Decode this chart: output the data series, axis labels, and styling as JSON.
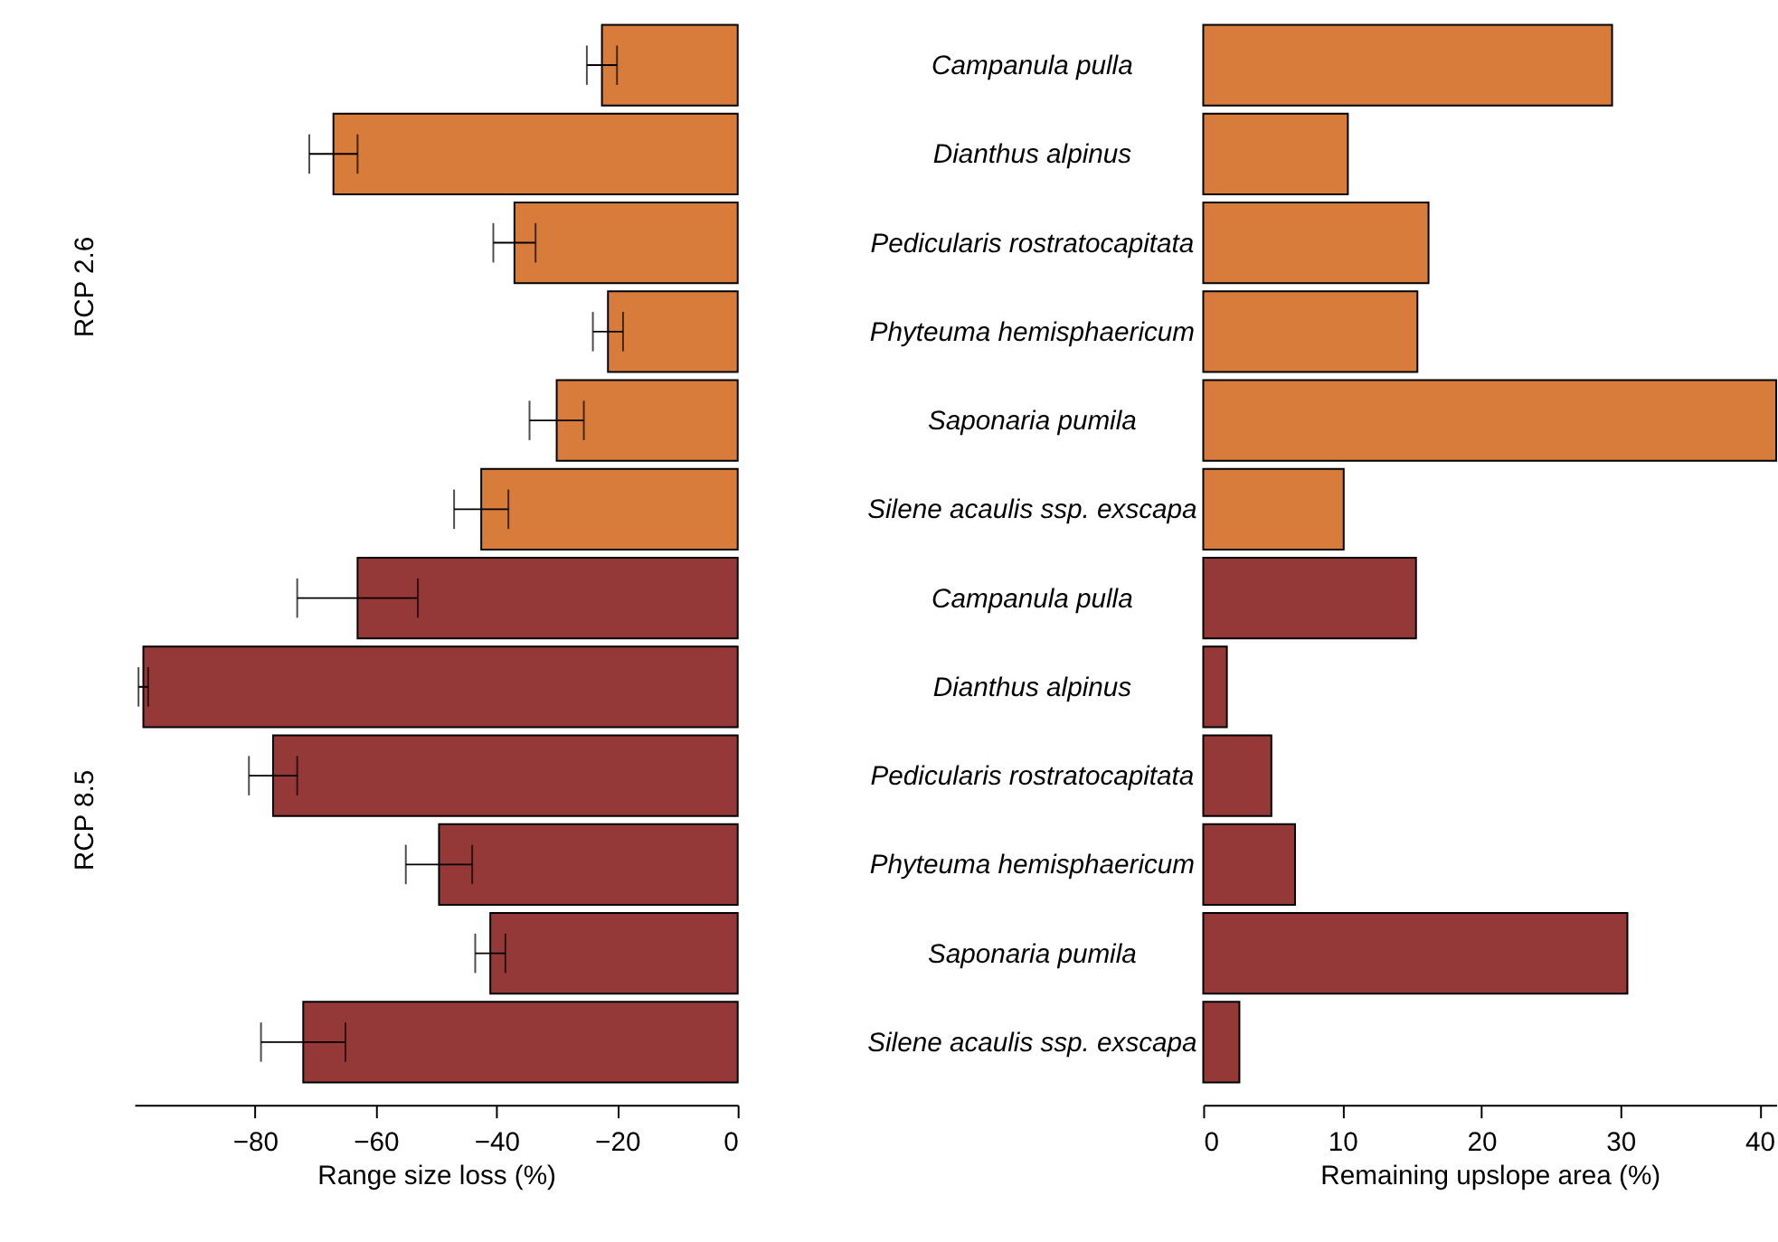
{
  "chart_data": [
    {
      "type": "bar",
      "orientation": "horizontal",
      "xlabel": "Range size loss (%)",
      "annotations": [
        "RCP 2.6",
        "RCP 8.5"
      ],
      "categories": [
        "Campanula pulla",
        "Dianthus alpinus",
        "Pedicularis rostratocapitata",
        "Phyteuma hemisphaericum",
        "Saponaria pumila",
        "Silene acaulis ssp. exscapa",
        "Campanula pulla",
        "Dianthus alpinus",
        "Pedicularis rostratocapitata",
        "Phyteuma hemisphaericum",
        "Saponaria pumila",
        "Silene acaulis ssp. exscapa"
      ],
      "values": [
        -22.5,
        -67,
        -37,
        -21.5,
        -30,
        -42.5,
        -63,
        -98.5,
        -77,
        -49.5,
        -41,
        -72
      ],
      "errors": [
        2.5,
        4,
        3.5,
        2.5,
        4.5,
        4.5,
        10,
        0.8,
        4,
        5.5,
        2.5,
        7
      ],
      "colors": [
        "#d77c3a",
        "#d77c3a",
        "#d77c3a",
        "#d77c3a",
        "#d77c3a",
        "#d77c3a",
        "#943938",
        "#943938",
        "#943938",
        "#943938",
        "#943938",
        "#943938"
      ],
      "xlim": [
        -100,
        0
      ],
      "xticks": [
        -80,
        -60,
        -40,
        -20,
        0
      ],
      "grid": false
    },
    {
      "type": "bar",
      "orientation": "horizontal",
      "xlabel": "Remaining upslope area (%)",
      "categories": [
        null,
        null,
        null,
        null,
        null,
        null,
        null,
        null,
        null,
        null,
        null,
        null
      ],
      "values": [
        29.4,
        10.4,
        16.2,
        15.4,
        41.2,
        10.1,
        15.3,
        1.7,
        4.9,
        6.6,
        30.5,
        2.6
      ],
      "colors": [
        "#d77c3a",
        "#d77c3a",
        "#d77c3a",
        "#d77c3a",
        "#d77c3a",
        "#d77c3a",
        "#943938",
        "#943938",
        "#943938",
        "#943938",
        "#943938",
        "#943938"
      ],
      "xlim": [
        0,
        41.2
      ],
      "xticks": [
        0,
        10,
        20,
        30,
        40
      ],
      "grid": false,
      "tick_labels": "x"
    }
  ]
}
